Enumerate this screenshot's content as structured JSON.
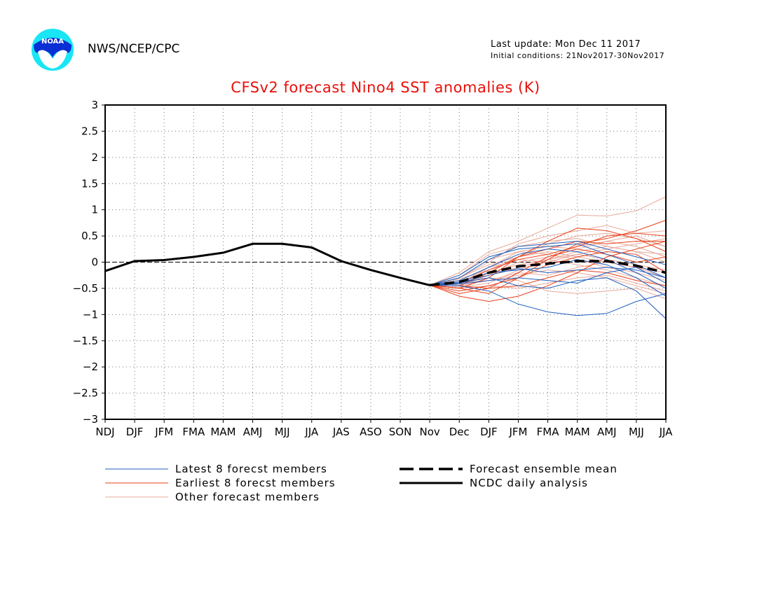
{
  "header": {
    "agency": "NWS/NCEP/CPC",
    "last_update": "Last update: Mon Dec 11 2017",
    "initial_conditions": "Initial conditions: 21Nov2017-30Nov2017",
    "logo_text": "NOAA"
  },
  "colors": {
    "latest": "#1f5fbf",
    "earliest": "#e8401a",
    "other": "#e8a89a",
    "title": "#e8100a",
    "mean": "#000000",
    "analysis": "#000000"
  },
  "chart_data": {
    "type": "line",
    "title": "CFSv2 forecast Nino4 SST anomalies (K)",
    "categories": [
      "NDJ",
      "DJF",
      "JFM",
      "FMA",
      "MAM",
      "AMJ",
      "MJJ",
      "JJA",
      "JAS",
      "ASO",
      "SON",
      "Nov",
      "Dec",
      "DJF",
      "JFM",
      "FMA",
      "MAM",
      "AMJ",
      "MJJ",
      "JJA"
    ],
    "ylim": [
      -3,
      3
    ],
    "yticks": [
      3,
      2.5,
      2,
      1.5,
      1,
      0.5,
      0,
      -0.5,
      -1,
      -1.5,
      -2,
      -2.5,
      -3
    ],
    "grid": true,
    "legend": {
      "placement": "bottom",
      "items": [
        {
          "key": "latest",
          "label": "Latest 8 forecst members"
        },
        {
          "key": "earliest",
          "label": "Earliest 8 forecst members"
        },
        {
          "key": "other",
          "label": "Other forecast members"
        },
        {
          "key": "mean",
          "label": "Forecast ensemble mean"
        },
        {
          "key": "analysis",
          "label": "NCDC daily analysis"
        }
      ]
    },
    "analysis": {
      "name": "NCDC daily analysis",
      "x_index": [
        0,
        1,
        2,
        3,
        4,
        5,
        6,
        7,
        8,
        9,
        10,
        11
      ],
      "values": [
        -0.17,
        0.02,
        0.04,
        0.1,
        0.18,
        0.35,
        0.35,
        0.28,
        0.02,
        -0.15,
        -0.3,
        -0.44
      ]
    },
    "ensemble_mean": {
      "name": "Forecast ensemble mean",
      "x_index": [
        11,
        12,
        13,
        14,
        15,
        16,
        17,
        18,
        19
      ],
      "values": [
        -0.44,
        -0.38,
        -0.2,
        -0.08,
        -0.03,
        0.02,
        0.02,
        -0.07,
        -0.2
      ]
    },
    "members": [
      {
        "group": "latest",
        "values": [
          -0.44,
          -0.3,
          0.05,
          0.3,
          0.35,
          0.4,
          0.25,
          0.1,
          -0.05
        ]
      },
      {
        "group": "latest",
        "values": [
          -0.44,
          -0.4,
          -0.25,
          -0.12,
          -0.2,
          -0.15,
          -0.1,
          -0.15,
          -0.3
        ]
      },
      {
        "group": "latest",
        "values": [
          -0.44,
          -0.45,
          -0.55,
          -0.8,
          -0.95,
          -1.02,
          -0.98,
          -0.75,
          -0.6
        ]
      },
      {
        "group": "latest",
        "values": [
          -0.44,
          -0.35,
          -0.1,
          0.15,
          0.25,
          0.2,
          0.05,
          -0.2,
          -0.5
        ]
      },
      {
        "group": "latest",
        "values": [
          -0.44,
          -0.4,
          -0.3,
          -0.45,
          -0.5,
          -0.35,
          -0.3,
          -0.55,
          -1.08
        ]
      },
      {
        "group": "latest",
        "values": [
          -0.44,
          -0.25,
          0.1,
          0.25,
          0.3,
          0.35,
          0.15,
          -0.05,
          -0.3
        ]
      },
      {
        "group": "latest",
        "values": [
          -0.44,
          -0.42,
          -0.35,
          -0.3,
          -0.35,
          -0.4,
          -0.2,
          -0.1,
          -0.4
        ]
      },
      {
        "group": "latest",
        "values": [
          -0.44,
          -0.38,
          -0.2,
          -0.15,
          -0.1,
          0.05,
          -0.05,
          -0.3,
          -0.65
        ]
      },
      {
        "group": "earliest",
        "values": [
          -0.44,
          -0.5,
          -0.6,
          -0.3,
          0.05,
          0.35,
          0.45,
          0.6,
          0.8
        ]
      },
      {
        "group": "earliest",
        "values": [
          -0.44,
          -0.65,
          -0.75,
          -0.65,
          -0.45,
          -0.2,
          0.1,
          0.25,
          0.4
        ]
      },
      {
        "group": "earliest",
        "values": [
          -0.44,
          -0.5,
          -0.3,
          0.1,
          0.4,
          0.65,
          0.6,
          0.45,
          0.2
        ]
      },
      {
        "group": "earliest",
        "values": [
          -0.44,
          -0.45,
          -0.2,
          0.1,
          0.25,
          0.4,
          0.35,
          0.4,
          0.4
        ]
      },
      {
        "group": "earliest",
        "values": [
          -0.44,
          -0.55,
          -0.45,
          -0.3,
          -0.05,
          0.1,
          0.2,
          0.15,
          -0.2
        ]
      },
      {
        "group": "earliest",
        "values": [
          -0.44,
          -0.4,
          -0.15,
          0.05,
          0.15,
          0.3,
          0.5,
          0.55,
          0.5
        ]
      },
      {
        "group": "earliest",
        "values": [
          -0.44,
          -0.45,
          -0.5,
          -0.45,
          -0.3,
          -0.15,
          -0.2,
          -0.35,
          -0.45
        ]
      },
      {
        "group": "earliest",
        "values": [
          -0.44,
          -0.6,
          -0.5,
          -0.2,
          0.1,
          0.25,
          0.15,
          0.0,
          0.1
        ]
      },
      {
        "group": "other",
        "values": [
          -0.44,
          -0.2,
          0.2,
          0.4,
          0.65,
          0.9,
          0.88,
          0.98,
          1.25
        ]
      },
      {
        "group": "other",
        "values": [
          -0.44,
          -0.3,
          0.0,
          0.35,
          0.5,
          0.6,
          0.7,
          0.55,
          0.6
        ]
      },
      {
        "group": "other",
        "values": [
          -0.44,
          -0.4,
          -0.1,
          0.2,
          0.3,
          0.25,
          0.4,
          0.5,
          0.3
        ]
      },
      {
        "group": "other",
        "values": [
          -0.44,
          -0.35,
          -0.25,
          -0.1,
          0.05,
          0.2,
          0.3,
          0.2,
          0.0
        ]
      },
      {
        "group": "other",
        "values": [
          -0.44,
          -0.45,
          -0.35,
          -0.2,
          -0.25,
          -0.1,
          0.0,
          -0.1,
          -0.3
        ]
      },
      {
        "group": "other",
        "values": [
          -0.44,
          -0.5,
          -0.45,
          -0.5,
          -0.4,
          -0.3,
          -0.25,
          -0.4,
          -0.55
        ]
      },
      {
        "group": "other",
        "values": [
          -0.44,
          -0.3,
          -0.05,
          0.1,
          0.2,
          0.1,
          0.0,
          -0.1,
          -0.2
        ]
      },
      {
        "group": "other",
        "values": [
          -0.44,
          -0.38,
          -0.3,
          -0.35,
          -0.55,
          -0.6,
          -0.55,
          -0.5,
          -0.7
        ]
      },
      {
        "group": "other",
        "values": [
          -0.44,
          -0.25,
          0.15,
          0.3,
          0.4,
          0.45,
          0.3,
          0.2,
          0.15
        ]
      },
      {
        "group": "other",
        "values": [
          -0.44,
          -0.42,
          -0.2,
          -0.05,
          0.05,
          -0.05,
          -0.15,
          -0.3,
          -0.45
        ]
      },
      {
        "group": "other",
        "values": [
          -0.44,
          -0.35,
          -0.1,
          0.05,
          0.0,
          0.15,
          0.25,
          0.35,
          0.45
        ]
      },
      {
        "group": "other",
        "values": [
          -0.44,
          -0.45,
          -0.25,
          0.0,
          0.1,
          0.3,
          0.4,
          0.3,
          0.1
        ]
      },
      {
        "group": "other",
        "values": [
          -0.44,
          -0.3,
          0.05,
          0.2,
          0.15,
          0.05,
          -0.1,
          -0.2,
          -0.35
        ]
      },
      {
        "group": "other",
        "values": [
          -0.44,
          -0.4,
          -0.35,
          -0.25,
          -0.15,
          -0.2,
          -0.3,
          -0.45,
          -0.6
        ]
      },
      {
        "group": "other",
        "values": [
          -0.44,
          -0.32,
          -0.15,
          0.1,
          0.35,
          0.5,
          0.55,
          0.45,
          0.3
        ]
      },
      {
        "group": "other",
        "values": [
          -0.44,
          -0.48,
          -0.4,
          -0.15,
          0.05,
          0.15,
          0.05,
          -0.05,
          -0.15
        ]
      }
    ]
  }
}
